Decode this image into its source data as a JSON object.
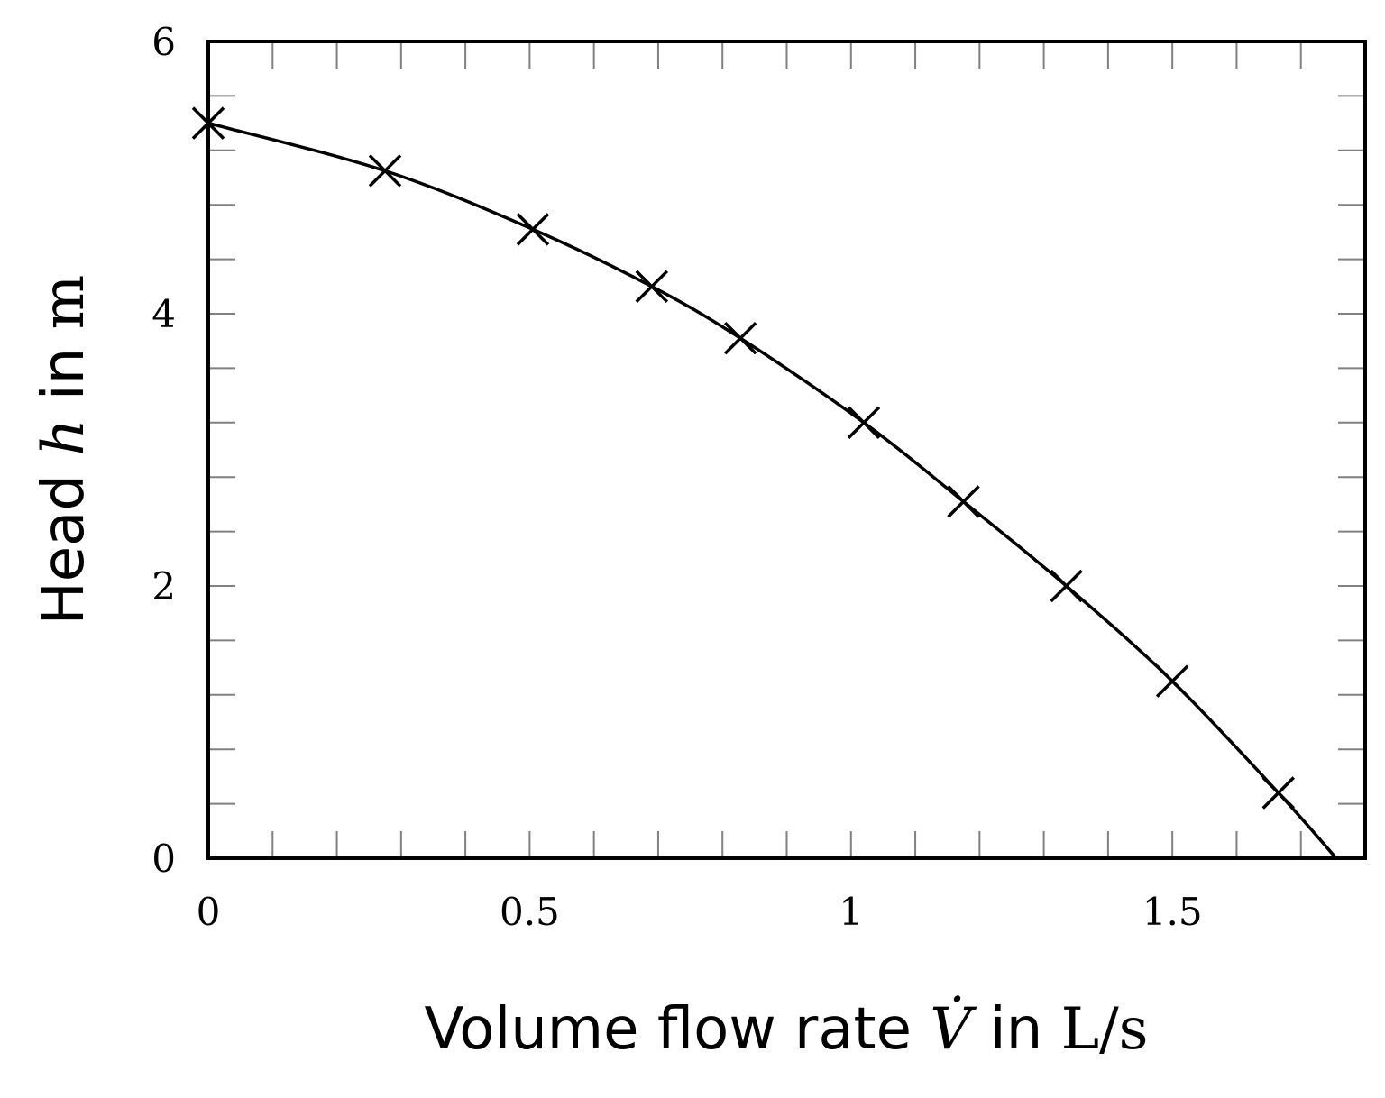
{
  "chart_data": {
    "type": "scatter",
    "title": "",
    "xlabel": {
      "prefix": "Volume flow rate ",
      "symbol": "V̇",
      "middle": " in ",
      "unit": "L/s"
    },
    "ylabel": {
      "prefix": "Head ",
      "symbol": "h",
      "middle": " in ",
      "unit": "m"
    },
    "xlim": [
      0,
      1.8
    ],
    "ylim": [
      0,
      6
    ],
    "x_ticks": [
      0,
      0.5,
      1,
      1.5
    ],
    "x_tick_labels": [
      "0",
      "0.5",
      "1",
      "1.5"
    ],
    "y_ticks": [
      0,
      2,
      4,
      6
    ],
    "y_tick_labels": [
      "0",
      "2",
      "4",
      "6"
    ],
    "grid": false,
    "series": [
      {
        "kind": "markers",
        "marker": "cross",
        "x": [
          0.0,
          0.275,
          0.505,
          0.69,
          0.828,
          1.02,
          1.175,
          1.335,
          1.5,
          1.665
        ],
        "y": [
          5.4,
          5.05,
          4.62,
          4.2,
          3.82,
          3.2,
          2.62,
          2.0,
          1.3,
          0.48
        ]
      },
      {
        "kind": "fit-line",
        "x": [
          0.0,
          0.275,
          0.505,
          0.69,
          0.828,
          1.02,
          1.175,
          1.335,
          1.5,
          1.665,
          1.755
        ],
        "y": [
          5.4,
          5.05,
          4.62,
          4.2,
          3.82,
          3.2,
          2.62,
          2.0,
          1.3,
          0.48,
          0.0
        ]
      }
    ],
    "colors": {
      "line": "#000000",
      "ticks": "#808080"
    }
  }
}
